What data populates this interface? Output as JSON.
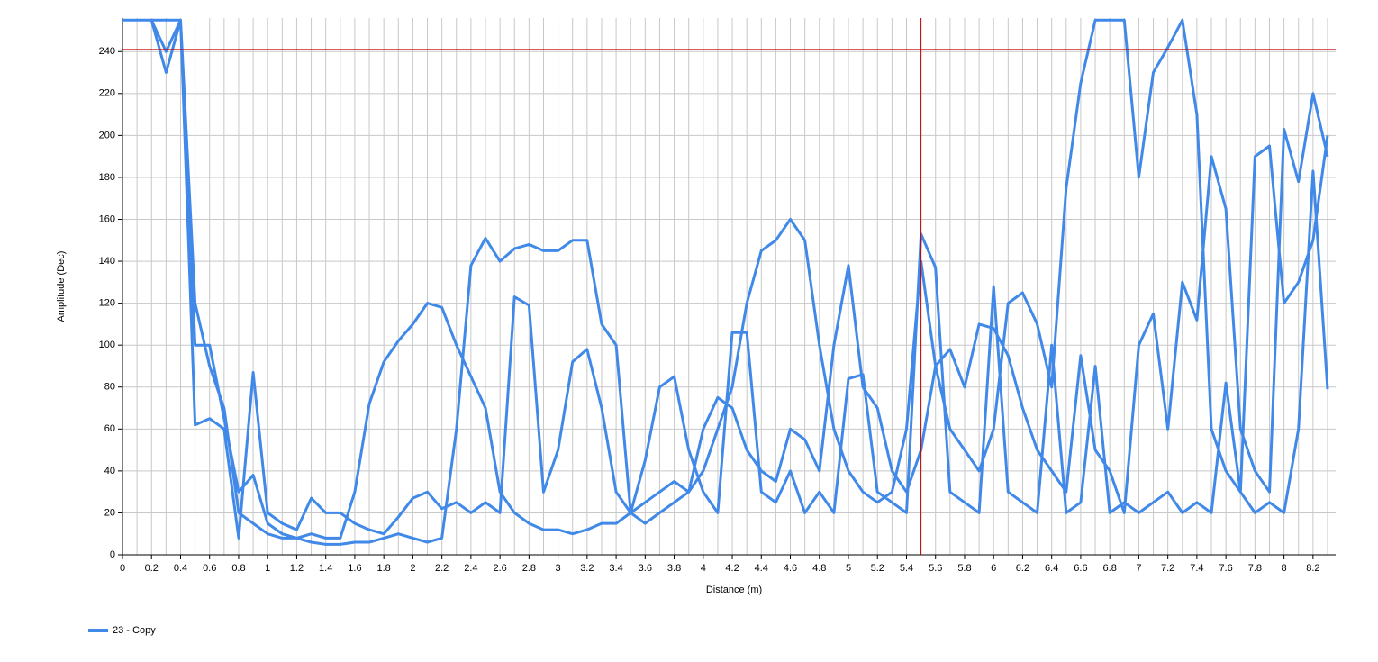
{
  "chart_data": {
    "type": "line",
    "xlabel": "Distance (m)",
    "ylabel": "Amplitude (Dec)",
    "xlim": [
      0,
      8.356
    ],
    "ylim": [
      0,
      256
    ],
    "xticks": [
      0,
      0.2,
      0.4,
      0.6,
      0.8,
      1,
      1.2,
      1.4,
      1.6,
      1.8,
      2,
      2.2,
      2.4,
      2.6,
      2.8,
      3,
      3.2,
      3.4,
      3.6,
      3.8,
      4,
      4.2,
      4.4,
      4.6,
      4.8,
      5,
      5.2,
      5.4,
      5.6,
      5.8,
      6,
      6.2,
      6.4,
      6.6,
      6.8,
      7,
      7.2,
      7.4,
      7.6,
      7.8,
      8,
      8.2
    ],
    "x_minor_ticks": [
      0.1,
      0.3,
      0.5,
      0.7,
      0.9,
      1.1,
      1.3,
      1.5,
      1.7,
      1.9,
      2.1,
      2.3,
      2.5,
      2.7,
      2.9,
      3.1,
      3.3,
      3.5,
      3.7,
      3.9,
      4.1,
      4.3,
      4.5,
      4.7,
      4.9,
      5.1,
      5.3,
      5.5,
      5.7,
      5.9,
      6.1,
      6.3,
      6.5,
      6.7,
      6.9,
      7.1,
      7.3,
      7.5,
      7.7,
      7.9,
      8.1,
      8.3
    ],
    "yticks": [
      0,
      20,
      40,
      60,
      80,
      100,
      120,
      140,
      160,
      180,
      200,
      220,
      240
    ],
    "grid": true,
    "cursor_x": 5.5,
    "cursor_y": 241,
    "cursor_color": "#c00000",
    "legend": "bottom-left",
    "series": [
      {
        "name": "23 - Copy",
        "color": "#4189e8",
        "x": [
          0,
          0.1,
          0.2,
          0.3,
          0.4,
          0.5,
          0.6,
          0.7,
          0.8,
          0.9,
          1,
          1.1,
          1.2,
          1.3,
          1.4,
          1.5,
          1.6,
          1.7,
          1.8,
          1.9,
          2,
          2.1,
          2.2,
          2.3,
          2.4,
          2.5,
          2.6,
          2.7,
          2.8,
          2.9,
          3,
          3.1,
          3.2,
          3.3,
          3.4,
          3.5,
          3.6,
          3.7,
          3.8,
          3.9,
          4,
          4.1,
          4.2,
          4.3,
          4.4,
          4.5,
          4.6,
          4.7,
          4.8,
          4.9,
          5,
          5.1,
          5.2,
          5.3,
          5.4,
          5.5,
          5.6,
          5.7,
          5.8,
          5.9,
          6,
          6.1,
          6.2,
          6.3,
          6.4,
          6.5,
          6.6,
          6.7,
          6.8,
          6.9,
          7,
          7.1,
          7.2,
          7.3,
          7.4,
          7.5,
          7.6,
          7.7,
          7.8,
          7.9,
          8,
          8.1,
          8.2,
          8.3,
          null,
          0,
          0.1,
          0.2,
          0.3,
          0.4,
          0.5,
          0.6,
          0.7,
          0.8,
          0.9,
          1,
          1.1,
          1.2,
          1.3,
          1.4,
          1.5,
          1.6,
          1.7,
          1.8,
          1.9,
          2,
          2.1,
          2.2,
          2.3,
          2.4,
          2.5,
          2.6,
          2.7,
          2.8,
          2.9,
          3,
          3.1,
          3.2,
          3.3,
          3.4,
          3.5,
          3.6,
          3.7,
          3.8,
          3.9,
          4,
          4.1,
          4.2,
          4.3,
          4.4,
          4.5,
          4.6,
          4.7,
          4.8,
          4.9,
          5,
          5.1,
          5.2,
          5.3,
          5.4,
          5.5,
          5.6,
          5.7,
          5.8,
          5.9,
          6,
          6.1,
          6.2,
          6.3,
          6.4,
          6.5,
          6.6,
          6.7,
          6.8,
          6.9,
          7,
          7.1,
          7.2,
          7.3,
          7.4,
          7.5,
          7.6,
          7.7,
          7.8,
          7.9,
          8,
          8.1,
          8.2,
          8.3,
          null,
          0,
          0.1,
          0.2,
          0.3,
          0.4,
          0.5,
          0.6,
          0.7,
          0.8,
          0.9,
          1,
          1.1,
          1.2,
          1.3,
          1.4,
          1.5,
          1.6,
          1.7,
          1.8,
          1.9,
          2,
          2.1,
          2.2,
          2.3,
          2.4,
          2.5,
          2.6,
          2.7,
          2.8,
          2.9,
          3,
          3.1,
          3.2,
          3.3,
          3.4,
          3.5,
          3.6,
          3.7,
          3.8,
          3.9,
          4,
          4.1,
          4.2,
          4.3,
          4.4,
          4.5,
          4.6,
          4.7,
          4.8,
          4.9,
          5,
          5.1,
          5.2,
          5.3,
          5.4,
          5.5,
          5.6,
          5.7,
          5.8,
          5.9,
          6,
          6.1,
          6.2,
          6.3,
          6.4,
          6.5,
          6.6,
          6.7,
          6.8,
          6.9,
          7,
          7.1,
          7.2,
          7.3,
          7.4,
          7.5,
          7.6,
          7.7,
          7.8,
          7.9,
          8,
          8.1,
          8.2,
          8.3
        ],
        "values": [
          255,
          255,
          255,
          240,
          255,
          120,
          90,
          70,
          20,
          15,
          10,
          8,
          8,
          10,
          8,
          8,
          30,
          72,
          92,
          102,
          110,
          120,
          118,
          100,
          85,
          70,
          30,
          20,
          15,
          12,
          12,
          10,
          12,
          15,
          15,
          20,
          25,
          30,
          35,
          30,
          40,
          60,
          80,
          120,
          145,
          150,
          160,
          150,
          100,
          60,
          40,
          30,
          25,
          30,
          60,
          140,
          90,
          60,
          50,
          40,
          60,
          120,
          125,
          110,
          80,
          175,
          225,
          255,
          255,
          255,
          180,
          230,
          242,
          255,
          210,
          60,
          40,
          30,
          190,
          195,
          120,
          130,
          150,
          200,
          null,
          255,
          255,
          255,
          255,
          255,
          100,
          100,
          65,
          30,
          38,
          15,
          10,
          8,
          6,
          5,
          5,
          6,
          6,
          8,
          10,
          8,
          6,
          8,
          60,
          138,
          151,
          140,
          146,
          148,
          145,
          145,
          150,
          150,
          110,
          100,
          20,
          15,
          20,
          25,
          30,
          60,
          75,
          70,
          50,
          40,
          35,
          60,
          55,
          40,
          100,
          138,
          80,
          70,
          40,
          30,
          50,
          90,
          98,
          80,
          110,
          108,
          95,
          70,
          50,
          40,
          30,
          95,
          50,
          40,
          20,
          100,
          115,
          60,
          130,
          112,
          190,
          165,
          60,
          40,
          30,
          203,
          178,
          220,
          190,
          null,
          255,
          255,
          255,
          230,
          255,
          62,
          65,
          60,
          8,
          87,
          20,
          15,
          12,
          27,
          20,
          20,
          15,
          12,
          10,
          18,
          27,
          30,
          22,
          25,
          20,
          25,
          20,
          123,
          119,
          30,
          50,
          92,
          98,
          70,
          30,
          20,
          45,
          80,
          85,
          50,
          30,
          20,
          106,
          106,
          30,
          25,
          40,
          20,
          30,
          20,
          84,
          86,
          30,
          25,
          20,
          153,
          137,
          30,
          25,
          20,
          128,
          30,
          25,
          20,
          100,
          20,
          25,
          90,
          20,
          25,
          20,
          25,
          30,
          20,
          25,
          20,
          82,
          30,
          20,
          25,
          20,
          60,
          183,
          79
        ]
      }
    ]
  }
}
